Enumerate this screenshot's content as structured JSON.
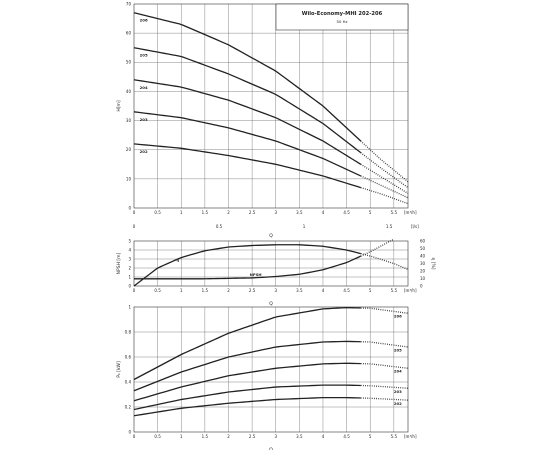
{
  "chart_data": [
    {
      "id": "head",
      "type": "line",
      "title": "Wilo-Economy-MHI 202-206",
      "subtitle": "50 Hz",
      "ylabel": "H[m]",
      "xlabel": "Q",
      "x_unit": "[m³/h]",
      "x_unit_top": "[l/s]",
      "xlim": [
        0,
        5.8
      ],
      "ylim": [
        0,
        70
      ],
      "grid": true,
      "x_ticks": [
        "0",
        "0.5",
        "1",
        "1.5",
        "2",
        "2.5",
        "3",
        "3.5",
        "4",
        "4.5",
        "5",
        "5.5"
      ],
      "y_ticks": [
        "0",
        "10",
        "20",
        "30",
        "40",
        "50",
        "60",
        "70"
      ],
      "top_ticks": [
        "0",
        "0.5",
        "1",
        "1.5"
      ],
      "series": [
        {
          "name": "206",
          "x": [
            0,
            1,
            2,
            3,
            4,
            4.8,
            5.2,
            5.8
          ],
          "y": [
            67,
            63,
            56,
            47,
            35,
            23,
            17,
            9
          ]
        },
        {
          "name": "205",
          "x": [
            0,
            1,
            2,
            3,
            4,
            4.8,
            5.2,
            5.8
          ],
          "y": [
            55,
            52,
            46,
            39,
            29,
            19,
            14,
            7
          ]
        },
        {
          "name": "204",
          "x": [
            0,
            1,
            2,
            3,
            4,
            4.8,
            5.2,
            5.8
          ],
          "y": [
            44,
            41.5,
            37,
            31,
            23,
            15,
            11,
            5
          ]
        },
        {
          "name": "203",
          "x": [
            0,
            1,
            2,
            3,
            4,
            4.8,
            5.2,
            5.8
          ],
          "y": [
            33,
            31,
            27.5,
            23,
            17,
            11,
            8,
            3.5
          ]
        },
        {
          "name": "202",
          "x": [
            0,
            1,
            2,
            3,
            4,
            4.8,
            5.2,
            5.8
          ],
          "y": [
            22,
            20.5,
            18,
            15,
            11,
            7,
            5,
            1.5
          ]
        }
      ],
      "dotted_from_x": 4.8
    },
    {
      "id": "npsh",
      "type": "line",
      "ylabel": "NPSH [m]",
      "ylabel_right": "η [%]",
      "xlabel": "Q",
      "x_unit": "[m³/h]",
      "xlim": [
        0,
        5.8
      ],
      "ylim": [
        0,
        5
      ],
      "ylim_right": [
        0,
        60
      ],
      "grid": true,
      "x_ticks": [
        "0",
        "0.5",
        "1",
        "1.5",
        "2",
        "2.5",
        "3",
        "3.5",
        "4",
        "4.5",
        "5",
        "5.5"
      ],
      "y_ticks": [
        "0",
        "1",
        "2",
        "3",
        "4",
        "5"
      ],
      "y_ticks_right": [
        "0",
        "10",
        "20",
        "30",
        "40",
        "50",
        "60"
      ],
      "series": [
        {
          "name": "η",
          "axis": "right",
          "x": [
            0,
            0.5,
            1,
            1.5,
            2,
            2.5,
            3,
            3.5,
            4,
            4.5,
            5,
            5.5,
            5.8
          ],
          "y": [
            0,
            24,
            38,
            47,
            52,
            54,
            55,
            55,
            53,
            48,
            40,
            30,
            22
          ]
        },
        {
          "name": "NPSH",
          "axis": "left",
          "x": [
            0,
            0.5,
            1,
            1.5,
            2,
            2.5,
            3,
            3.5,
            4,
            4.5,
            5,
            5.5
          ],
          "y": [
            0.8,
            0.8,
            0.8,
            0.8,
            0.85,
            0.9,
            1.05,
            1.3,
            1.8,
            2.6,
            3.8,
            5.2
          ]
        }
      ],
      "dotted_from_x": 4.8
    },
    {
      "id": "power",
      "type": "line",
      "ylabel": "P₁ [kW]",
      "xlabel": "Q",
      "x_unit": "[m³/h]",
      "xlim": [
        0,
        5.8
      ],
      "ylim": [
        0,
        1
      ],
      "grid": true,
      "x_ticks": [
        "0",
        "0.5",
        "1",
        "1.5",
        "2",
        "2.5",
        "3",
        "3.5",
        "4",
        "4.5",
        "5",
        "5.5"
      ],
      "y_ticks": [
        "0",
        "0.2",
        "0.4",
        "0.6",
        "0.8",
        "1"
      ],
      "series": [
        {
          "name": "206",
          "x": [
            0,
            1,
            2,
            3,
            4,
            4.5,
            5,
            5.8
          ],
          "y": [
            0.42,
            0.62,
            0.79,
            0.92,
            0.985,
            0.995,
            0.99,
            0.95
          ]
        },
        {
          "name": "205",
          "x": [
            0,
            1,
            2,
            3,
            4,
            4.5,
            5,
            5.8
          ],
          "y": [
            0.33,
            0.48,
            0.6,
            0.68,
            0.72,
            0.725,
            0.72,
            0.68
          ]
        },
        {
          "name": "204",
          "x": [
            0,
            1,
            2,
            3,
            4,
            4.5,
            5,
            5.8
          ],
          "y": [
            0.25,
            0.36,
            0.45,
            0.51,
            0.545,
            0.55,
            0.545,
            0.51
          ]
        },
        {
          "name": "203",
          "x": [
            0,
            1,
            2,
            3,
            4,
            4.5,
            5,
            5.8
          ],
          "y": [
            0.18,
            0.26,
            0.32,
            0.36,
            0.375,
            0.375,
            0.37,
            0.35
          ]
        },
        {
          "name": "202",
          "x": [
            0,
            1,
            2,
            3,
            4,
            4.5,
            5,
            5.8
          ],
          "y": [
            0.13,
            0.19,
            0.23,
            0.26,
            0.275,
            0.275,
            0.27,
            0.255
          ]
        }
      ],
      "dotted_from_x": 4.8
    }
  ]
}
